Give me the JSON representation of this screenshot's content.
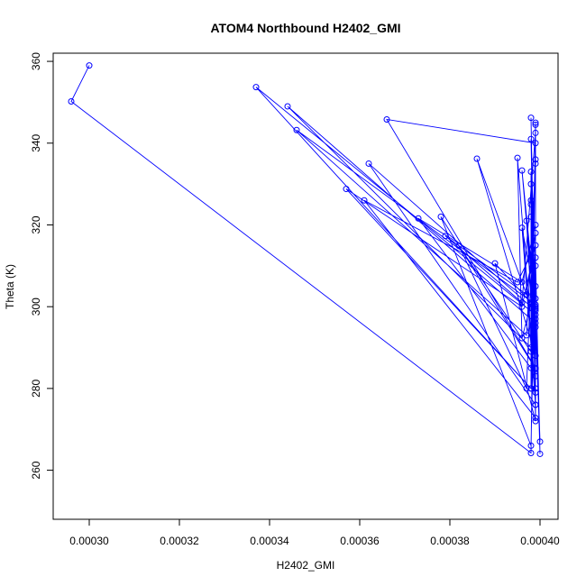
{
  "chart_data": {
    "type": "line",
    "title": "ATOM4 Northbound H2402_GMI",
    "xlabel": "H2402_GMI",
    "ylabel": "Theta (K)",
    "xlim": [
      0.000292,
      0.000404
    ],
    "ylim": [
      248,
      362
    ],
    "x_ticks": [
      0.0003,
      0.00032,
      0.00034,
      0.00036,
      0.00038,
      0.0004
    ],
    "x_tick_labels": [
      "0.00030",
      "0.00032",
      "0.00034",
      "0.00036",
      "0.00038",
      "0.00040"
    ],
    "y_ticks": [
      260,
      280,
      300,
      320,
      340,
      360
    ],
    "y_tick_labels": [
      "260",
      "280",
      "300",
      "320",
      "340",
      "360"
    ],
    "grid": false,
    "series": [
      {
        "color": "#0000ff",
        "marker": "open-circle",
        "points": [
          [
            0.0003,
            359.0
          ],
          [
            0.000296,
            350.2
          ],
          [
            0.000398,
            264.2
          ],
          [
            0.000399,
            345.0
          ],
          [
            0.000398,
            280.0
          ],
          [
            0.000337,
            353.7
          ],
          [
            0.000399,
            298.0
          ],
          [
            0.000398,
            341.0
          ],
          [
            0.000399,
            285.0
          ],
          [
            0.000366,
            345.8
          ],
          [
            0.000399,
            340.0
          ],
          [
            0.000398,
            290.0
          ],
          [
            0.000344,
            349.0
          ],
          [
            0.000399,
            296.0
          ],
          [
            0.000398,
            330.0
          ],
          [
            0.000399,
            300.5
          ],
          [
            0.000346,
            343.2
          ],
          [
            0.000397,
            293.0
          ],
          [
            0.000399,
            335.0
          ],
          [
            0.000398,
            300.0
          ],
          [
            0.000362,
            335.0
          ],
          [
            0.000399,
            276.0
          ],
          [
            0.000398,
            325.0
          ],
          [
            0.000398,
            280.0
          ],
          [
            0.000357,
            328.8
          ],
          [
            0.000396,
            300.0
          ],
          [
            0.000399,
            315.0
          ],
          [
            0.000395,
            306.0
          ],
          [
            0.000361,
            326.0
          ],
          [
            0.000399,
            272.8
          ],
          [
            0.000399,
            310.0
          ],
          [
            0.000398,
            285.0
          ],
          [
            0.000373,
            321.6
          ],
          [
            0.000396,
            306.0
          ],
          [
            0.000399,
            320.0
          ],
          [
            0.000399,
            284.8
          ],
          [
            0.000378,
            322.0
          ],
          [
            0.000398,
            266.0
          ],
          [
            0.000399,
            318.0
          ],
          [
            0.000397,
            303.0
          ],
          [
            0.000379,
            317.3
          ],
          [
            0.000396,
            301.0
          ],
          [
            0.000399,
            342.5
          ],
          [
            0.000398,
            289.0
          ],
          [
            0.000382,
            314.9
          ],
          [
            0.000397,
            280.0
          ],
          [
            0.000399,
            336.0
          ],
          [
            0.000398,
            301.0
          ],
          [
            0.00039,
            310.6
          ],
          [
            0.000399,
            272.0
          ],
          [
            0.000398,
            333.0
          ],
          [
            0.000398,
            300.0
          ],
          [
            0.000386,
            336.2
          ],
          [
            0.000399,
            288.0
          ],
          [
            0.000398,
            346.2
          ],
          [
            0.000399,
            279.0
          ],
          [
            0.000395,
            336.4
          ],
          [
            0.000396,
            292.3
          ],
          [
            0.000399,
            305.0
          ],
          [
            0.000398,
            326.0
          ],
          [
            0.000399,
            295.0
          ],
          [
            0.000396,
            333.3
          ],
          [
            0.000399,
            300.0
          ],
          [
            0.000397,
            321.0
          ],
          [
            0.000399,
            283.0
          ],
          [
            0.000399,
            302.0
          ],
          [
            0.000396,
            319.3
          ],
          [
            0.000399,
            276.0
          ],
          [
            0.000399,
            299.0
          ],
          [
            0.000399,
            344.5
          ],
          [
            0.000399,
            280.0
          ],
          [
            0.000398,
            322.0
          ],
          [
            0.0004,
            267.0
          ],
          [
            0.000399,
            299.5
          ],
          [
            0.0004,
            264.0
          ],
          [
            0.000399,
            312.0
          ],
          [
            0.000399,
            297.0
          ]
        ]
      }
    ]
  }
}
